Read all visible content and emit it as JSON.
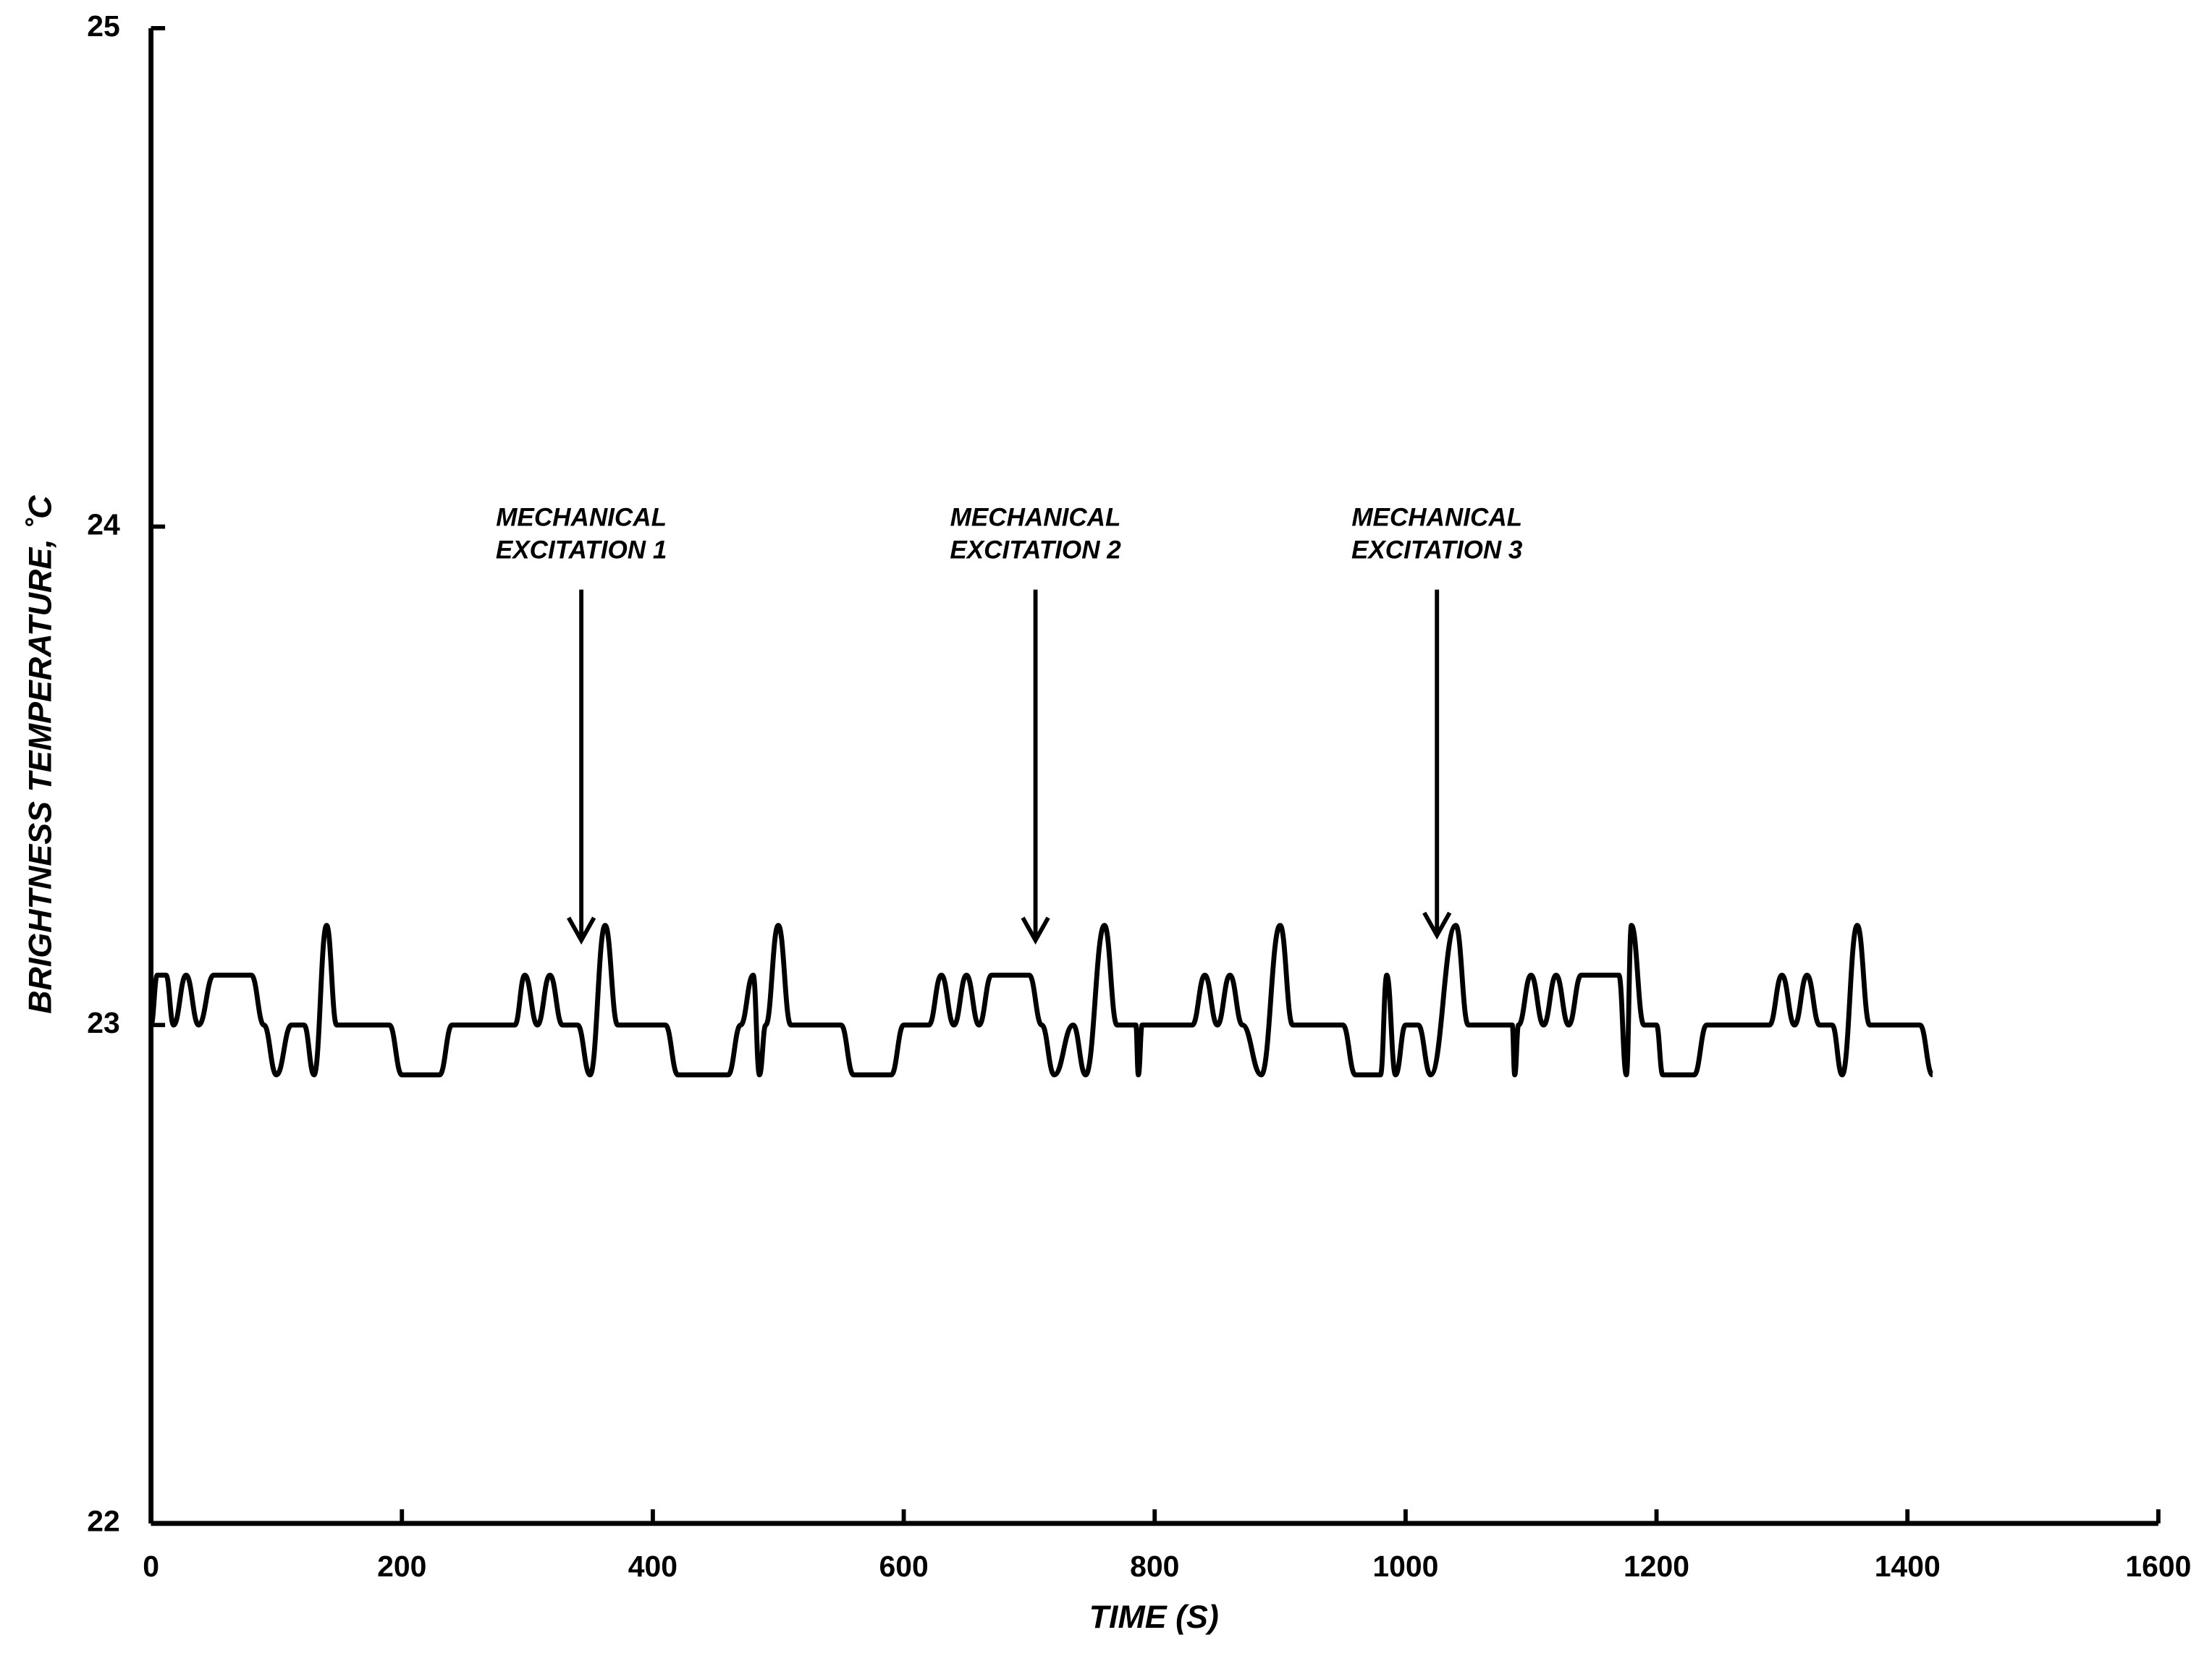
{
  "chart_data": {
    "type": "line",
    "xlabel": "TIME (S)",
    "ylabel": "BRIGHTNESS TEMPERATURE, ˚C",
    "xlim": [
      0,
      1600
    ],
    "xticks": [
      0,
      200,
      400,
      600,
      800,
      1000,
      1200,
      1400,
      1600
    ],
    "ylim": [
      22,
      25
    ],
    "yticks": [
      22,
      23,
      24,
      25
    ],
    "series": [
      {
        "color": "#000000",
        "x": [
          0,
          5,
          12,
          18,
          28,
          38,
          50,
          80,
          90,
          100,
          112,
          122,
          130,
          140,
          148,
          190,
          200,
          230,
          240,
          290,
          298,
          308,
          318,
          328,
          340,
          350,
          362,
          372,
          410,
          420,
          460,
          470,
          480,
          485,
          490,
          500,
          510,
          550,
          560,
          590,
          600,
          620,
          630,
          640,
          650,
          660,
          670,
          700,
          710,
          720,
          735,
          745,
          760,
          770,
          785,
          787,
          790,
          830,
          840,
          850,
          860,
          870,
          885,
          900,
          910,
          950,
          960,
          980,
          985,
          992,
          1000,
          1010,
          1020,
          1040,
          1050,
          1085,
          1087,
          1090,
          1100,
          1110,
          1120,
          1130,
          1140,
          1170,
          1176,
          1180,
          1190,
          1200,
          1205,
          1230,
          1240,
          1290,
          1300,
          1310,
          1320,
          1330,
          1340,
          1348,
          1360,
          1370,
          1410,
          1420
        ],
        "values": [
          23.0,
          23.1,
          23.1,
          23.0,
          23.1,
          23.0,
          23.1,
          23.1,
          23.0,
          22.9,
          23.0,
          23.0,
          22.9,
          23.2,
          23.0,
          23.0,
          22.9,
          22.9,
          23.0,
          23.0,
          23.1,
          23.0,
          23.1,
          23.0,
          23.0,
          22.9,
          23.2,
          23.0,
          23.0,
          22.9,
          22.9,
          23.0,
          23.1,
          22.9,
          23.0,
          23.2,
          23.0,
          23.0,
          22.9,
          22.9,
          23.0,
          23.0,
          23.1,
          23.0,
          23.1,
          23.0,
          23.1,
          23.1,
          23.0,
          22.9,
          23.0,
          22.9,
          23.2,
          23.0,
          23.0,
          22.9,
          23.0,
          23.0,
          23.1,
          23.0,
          23.1,
          23.0,
          22.9,
          23.2,
          23.0,
          23.0,
          22.9,
          22.9,
          23.1,
          22.9,
          23.0,
          23.0,
          22.9,
          23.2,
          23.0,
          23.0,
          22.9,
          23.0,
          23.1,
          23.0,
          23.1,
          23.0,
          23.1,
          23.1,
          22.9,
          23.2,
          23.0,
          23.0,
          22.9,
          22.9,
          23.0,
          23.0,
          23.1,
          23.0,
          23.1,
          23.0,
          23.0,
          22.9,
          23.2,
          23.0,
          23.0,
          22.9
        ]
      }
    ],
    "annotations": [
      {
        "lines": [
          "MECHANICAL",
          "EXCITATION 1"
        ],
        "x": 343,
        "y": 23.17
      },
      {
        "lines": [
          "MECHANICAL",
          "EXCITATION 2"
        ],
        "x": 705,
        "y": 23.17
      },
      {
        "lines": [
          "MECHANICAL",
          "EXCITATION 3"
        ],
        "x": 1025,
        "y": 23.18
      }
    ]
  }
}
